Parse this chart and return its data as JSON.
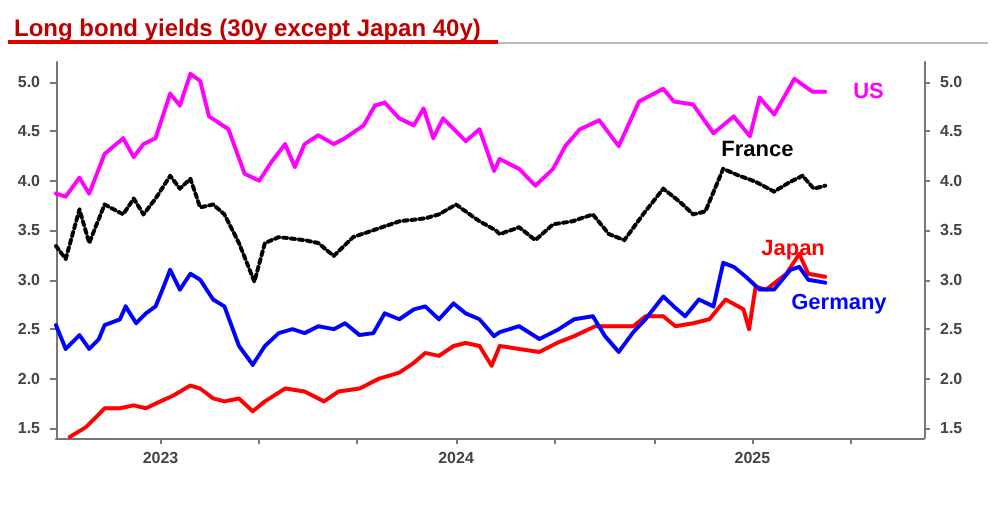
{
  "chart_data": {
    "type": "line",
    "title": "Long bond yields (30y except Japan 40y)",
    "xlim": [
      "2022-08-25",
      "2025-08-01"
    ],
    "xticks": [
      {
        "value": "2023-01-01",
        "label": "2023"
      },
      {
        "value": "2023-05-01",
        "label": null
      },
      {
        "value": "2023-09-01",
        "label": null
      },
      {
        "value": "2024-01-01",
        "label": "2024"
      },
      {
        "value": "2024-05-01",
        "label": null
      },
      {
        "value": "2024-09-01",
        "label": null
      },
      {
        "value": "2025-01-01",
        "label": "2025"
      },
      {
        "value": "2025-05-01",
        "label": null
      }
    ],
    "ylim": [
      1.4,
      5.2
    ],
    "yticks": [
      1.5,
      {
        "value": 2,
        "label": "2.0"
      },
      2.5,
      {
        "value": 3,
        "label": "3.0"
      },
      3.5,
      {
        "value": 4,
        "label": "4.0"
      },
      4.5,
      {
        "value": 5,
        "label": "5.0"
      }
    ],
    "y2lim": [
      1.4,
      5.2
    ],
    "y2ticks": [
      1.5,
      {
        "value": 2,
        "label": "2.0"
      },
      2.5,
      {
        "value": 3,
        "label": "3.0"
      },
      3.5,
      {
        "value": 4,
        "label": "4.0"
      },
      4.5,
      {
        "value": 5,
        "label": "5.0"
      }
    ],
    "grid": false,
    "legend": false,
    "marker": "none",
    "series": [
      {
        "name": "US",
        "color": "#ff00ff",
        "x": [
          "2022-08-25",
          "2022-09-06",
          "2022-09-23",
          "2022-10-05",
          "2022-10-24",
          "2022-11-16",
          "2022-11-29",
          "2022-12-11",
          "2022-12-26",
          "2023-01-13",
          "2023-01-25",
          "2023-02-07",
          "2023-02-19",
          "2023-03-02",
          "2023-03-26",
          "2023-04-15",
          "2023-05-03",
          "2023-05-19",
          "2023-06-04",
          "2023-06-16",
          "2023-06-28",
          "2023-07-15",
          "2023-08-03",
          "2023-08-17",
          "2023-09-09",
          "2023-09-23",
          "2023-10-05",
          "2023-10-23",
          "2023-11-10",
          "2023-11-22",
          "2023-12-04",
          "2023-12-16",
          "2024-01-01",
          "2024-01-13",
          "2024-01-30",
          "2024-02-17",
          "2024-02-24",
          "2024-03-19",
          "2024-04-08",
          "2024-04-30",
          "2024-05-15",
          "2024-06-02",
          "2024-06-26",
          "2024-07-20",
          "2024-08-14",
          "2024-09-13",
          "2024-09-26",
          "2024-10-20",
          "2024-11-14",
          "2024-12-09",
          "2024-12-29",
          "2025-01-10",
          "2025-01-28",
          "2025-02-22",
          "2025-03-16",
          "2025-04-01"
        ],
        "values": [
          3.87,
          3.84,
          4.03,
          3.87,
          4.27,
          4.43,
          4.24,
          4.37,
          4.43,
          4.88,
          4.76,
          5.08,
          5.01,
          4.65,
          4.52,
          4.07,
          4.0,
          4.2,
          4.37,
          4.14,
          4.37,
          4.46,
          4.37,
          4.43,
          4.56,
          4.76,
          4.79,
          4.63,
          4.56,
          4.73,
          4.43,
          4.63,
          4.5,
          4.4,
          4.52,
          4.1,
          4.22,
          4.12,
          3.95,
          4.12,
          4.35,
          4.52,
          4.61,
          4.35,
          4.8,
          4.93,
          4.8,
          4.77,
          4.48,
          4.65,
          4.45,
          4.84,
          4.67,
          5.03,
          4.9,
          4.9
        ]
      },
      {
        "name": "France",
        "color": "#000000",
        "line_style": "dotted",
        "x": [
          "2022-08-25",
          "2022-09-06",
          "2022-09-23",
          "2022-10-05",
          "2022-10-24",
          "2022-11-16",
          "2022-11-29",
          "2022-12-11",
          "2022-12-26",
          "2023-01-13",
          "2023-01-25",
          "2023-02-07",
          "2023-02-19",
          "2023-03-07",
          "2023-03-21",
          "2023-04-08",
          "2023-04-27",
          "2023-05-10",
          "2023-05-27",
          "2023-06-28",
          "2023-07-15",
          "2023-08-03",
          "2023-08-27",
          "2023-09-21",
          "2023-10-23",
          "2023-11-24",
          "2023-12-11",
          "2024-01-01",
          "2024-01-13",
          "2024-01-30",
          "2024-02-19",
          "2024-02-24",
          "2024-03-19",
          "2024-04-08",
          "2024-04-30",
          "2024-05-24",
          "2024-06-18",
          "2024-07-08",
          "2024-07-27",
          "2024-08-19",
          "2024-09-13",
          "2024-10-03",
          "2024-10-20",
          "2024-11-04",
          "2024-11-26",
          "2024-12-16",
          "2025-01-05",
          "2025-01-28",
          "2025-02-17",
          "2025-03-04",
          "2025-03-18",
          "2025-04-01"
        ],
        "values": [
          3.34,
          3.21,
          3.71,
          3.37,
          3.76,
          3.66,
          3.82,
          3.66,
          3.82,
          4.05,
          3.92,
          4.02,
          3.73,
          3.76,
          3.66,
          3.37,
          2.98,
          3.37,
          3.43,
          3.4,
          3.37,
          3.24,
          3.43,
          3.5,
          3.59,
          3.62,
          3.66,
          3.76,
          3.69,
          3.59,
          3.5,
          3.46,
          3.53,
          3.4,
          3.56,
          3.59,
          3.66,
          3.46,
          3.4,
          3.66,
          3.92,
          3.79,
          3.66,
          3.69,
          4.12,
          4.05,
          3.99,
          3.89,
          3.99,
          4.05,
          3.92,
          3.95
        ]
      },
      {
        "name": "Japan",
        "color": "#ff0000",
        "x": [
          "2022-09-11",
          "2022-10-01",
          "2022-10-17",
          "2022-10-24",
          "2022-11-12",
          "2022-11-29",
          "2022-12-14",
          "2023-01-01",
          "2023-01-17",
          "2023-02-07",
          "2023-02-19",
          "2023-03-07",
          "2023-03-21",
          "2023-04-08",
          "2023-04-25",
          "2023-05-10",
          "2023-06-04",
          "2023-06-28",
          "2023-07-22",
          "2023-08-09",
          "2023-09-04",
          "2023-09-28",
          "2023-10-23",
          "2023-11-10",
          "2023-11-24",
          "2023-12-11",
          "2023-12-29",
          "2024-01-13",
          "2024-01-30",
          "2024-02-14",
          "2024-02-24",
          "2024-03-19",
          "2024-04-13",
          "2024-05-07",
          "2024-05-26",
          "2024-06-21",
          "2024-07-15",
          "2024-08-07",
          "2024-08-22",
          "2024-09-13",
          "2024-09-28",
          "2024-10-20",
          "2024-11-09",
          "2024-11-29",
          "2024-12-21",
          "2024-12-28",
          "2025-01-05",
          "2025-01-18",
          "2025-02-12",
          "2025-02-28",
          "2025-03-11",
          "2025-04-01"
        ],
        "values": [
          1.41,
          1.51,
          1.64,
          1.7,
          1.7,
          1.73,
          1.7,
          1.77,
          1.83,
          1.93,
          1.9,
          1.8,
          1.77,
          1.8,
          1.67,
          1.77,
          1.9,
          1.87,
          1.77,
          1.87,
          1.9,
          2.0,
          2.06,
          2.16,
          2.26,
          2.23,
          2.33,
          2.36,
          2.33,
          2.13,
          2.33,
          2.3,
          2.27,
          2.37,
          2.43,
          2.53,
          2.53,
          2.53,
          2.63,
          2.63,
          2.53,
          2.56,
          2.6,
          2.8,
          2.7,
          2.5,
          2.93,
          2.9,
          3.06,
          3.26,
          3.06,
          3.03
        ]
      },
      {
        "name": "Germany",
        "color": "#0000ff",
        "x": [
          "2022-08-25",
          "2022-09-06",
          "2022-09-23",
          "2022-10-05",
          "2022-10-17",
          "2022-10-24",
          "2022-11-12",
          "2022-11-19",
          "2022-12-02",
          "2022-12-14",
          "2022-12-26",
          "2023-01-05",
          "2023-01-13",
          "2023-01-25",
          "2023-02-07",
          "2023-02-19",
          "2023-03-07",
          "2023-03-21",
          "2023-04-08",
          "2023-04-25",
          "2023-05-10",
          "2023-05-27",
          "2023-06-13",
          "2023-06-28",
          "2023-07-15",
          "2023-08-03",
          "2023-08-17",
          "2023-09-04",
          "2023-09-21",
          "2023-10-05",
          "2023-10-23",
          "2023-11-10",
          "2023-11-24",
          "2023-12-11",
          "2023-12-29",
          "2024-01-13",
          "2024-01-30",
          "2024-02-17",
          "2024-02-24",
          "2024-03-19",
          "2024-04-13",
          "2024-05-07",
          "2024-05-26",
          "2024-06-18",
          "2024-07-03",
          "2024-07-20",
          "2024-08-07",
          "2024-08-22",
          "2024-09-13",
          "2024-09-26",
          "2024-10-10",
          "2024-10-27",
          "2024-11-14",
          "2024-11-26",
          "2024-12-09",
          "2024-12-24",
          "2025-01-10",
          "2025-01-28",
          "2025-02-17",
          "2025-02-28",
          "2025-03-11",
          "2025-04-01"
        ],
        "values": [
          2.54,
          2.3,
          2.44,
          2.3,
          2.4,
          2.54,
          2.6,
          2.73,
          2.56,
          2.66,
          2.73,
          2.93,
          3.1,
          2.9,
          3.06,
          3.0,
          2.8,
          2.73,
          2.33,
          2.14,
          2.33,
          2.46,
          2.5,
          2.46,
          2.53,
          2.5,
          2.56,
          2.44,
          2.46,
          2.66,
          2.6,
          2.7,
          2.73,
          2.6,
          2.76,
          2.66,
          2.6,
          2.43,
          2.47,
          2.53,
          2.4,
          2.5,
          2.6,
          2.63,
          2.43,
          2.27,
          2.47,
          2.6,
          2.83,
          2.73,
          2.63,
          2.8,
          2.73,
          3.17,
          3.13,
          3.03,
          2.9,
          2.9,
          3.1,
          3.13,
          3.0,
          2.97
        ]
      }
    ]
  }
}
